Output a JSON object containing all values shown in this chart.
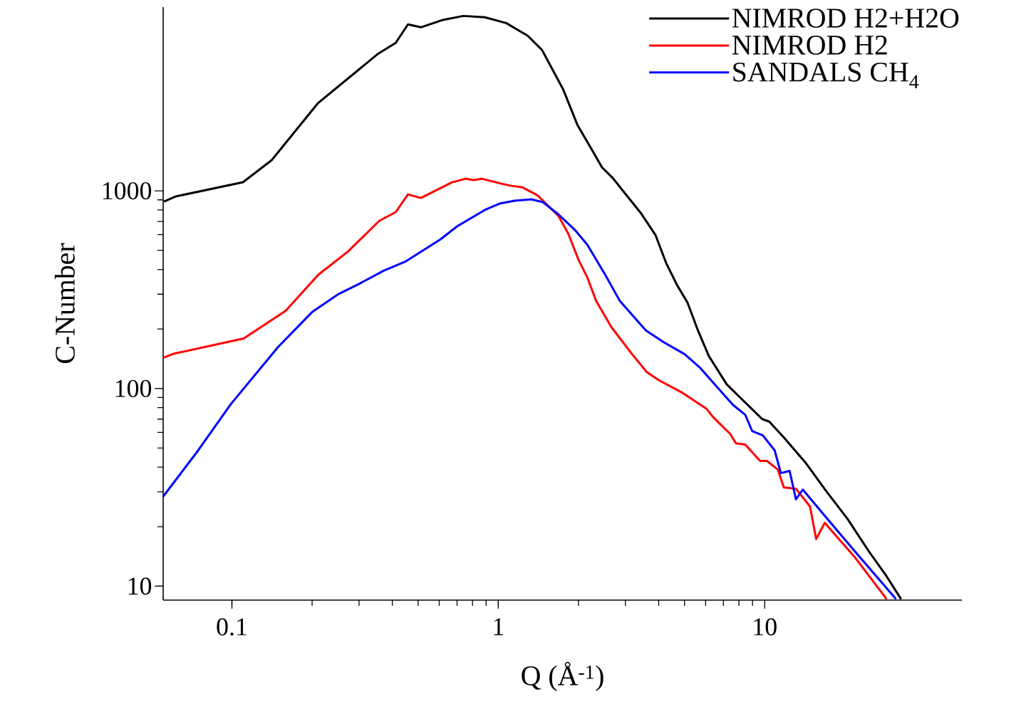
{
  "chart_data": {
    "type": "line",
    "xlabel": "Q (Å$^{-1}$)",
    "ylabel": "C-Number",
    "log": "xy",
    "xlim": [
      0.0552,
      55
    ],
    "ylim": [
      8.5,
      8500
    ],
    "xticks": [
      0.1,
      1,
      10
    ],
    "yticks": [
      10,
      100,
      1000
    ],
    "legend": "top right",
    "grid": false,
    "series": [
      {
        "name": "NIMROD H2+H2O",
        "color": "#000000",
        "x": [
          0.0556,
          0.0614,
          0.11,
          0.141,
          0.21,
          0.294,
          0.354,
          0.412,
          0.458,
          0.512,
          0.615,
          0.739,
          0.889,
          1.07,
          1.29,
          1.46,
          1.75,
          1.98,
          2.24,
          2.45,
          2.69,
          3.04,
          3.44,
          3.89,
          4.27,
          4.68,
          5.13,
          5.63,
          6.17,
          7.2,
          7.89,
          8.93,
          9.79,
          10.4,
          11.8,
          14.2,
          17.0,
          20.5,
          24.6,
          28.7,
          32.5
        ],
        "values": [
          883,
          936,
          1105,
          1429,
          2770,
          4020,
          4940,
          5600,
          6950,
          6720,
          7300,
          7670,
          7550,
          7060,
          6090,
          5150,
          3270,
          2160,
          1620,
          1315,
          1160,
          944,
          767,
          598,
          430,
          335,
          272,
          195,
          146,
          105,
          93,
          79,
          70,
          68,
          56.5,
          42.3,
          30.3,
          21.8,
          15.0,
          11.2,
          8.6
        ]
      },
      {
        "name": "NIMROD H2",
        "color": "#ff0000",
        "x": [
          0.0552,
          0.0606,
          0.1107,
          0.159,
          0.211,
          0.273,
          0.358,
          0.412,
          0.458,
          0.512,
          0.67,
          0.754,
          0.807,
          0.869,
          1.03,
          1.12,
          1.23,
          1.4,
          1.68,
          1.83,
          2.0,
          2.16,
          2.33,
          2.66,
          3.18,
          3.61,
          4.01,
          4.92,
          6.06,
          6.36,
          7.42,
          7.8,
          8.45,
          9.61,
          10.2,
          11.2,
          11.8,
          13.1,
          14.8,
          15.6,
          16.8,
          21.8,
          28.7
        ],
        "values": [
          143,
          150,
          179,
          247,
          376,
          494,
          706,
          780,
          959,
          920,
          1104,
          1151,
          1132,
          1151,
          1086,
          1059,
          1042,
          951,
          748,
          608,
          448,
          364,
          277,
          204,
          149,
          121,
          110,
          95,
          78.7,
          72.4,
          58.9,
          52.8,
          52.0,
          43.0,
          43.0,
          38.9,
          31.6,
          31.1,
          25.3,
          17.3,
          20.9,
          14.0,
          8.6
        ]
      },
      {
        "name": "SANDALS CH$_{4}$",
        "color": "#0000ff",
        "x": [
          0.0552,
          0.0747,
          0.0991,
          0.149,
          0.201,
          0.252,
          0.3,
          0.372,
          0.45,
          0.608,
          0.7,
          0.89,
          1.01,
          1.15,
          1.33,
          1.47,
          1.68,
          1.95,
          2.16,
          2.52,
          2.86,
          3.42,
          3.59,
          4.19,
          5.01,
          5.73,
          7.6,
          8.45,
          8.98,
          9.84,
          10.9,
          11.5,
          12.4,
          13.1,
          13.9,
          16.8,
          21.8,
          31.1
        ],
        "values": [
          28.4,
          48.6,
          83.4,
          162,
          245,
          301,
          338,
          395,
          440,
          569,
          661,
          800,
          861,
          891,
          906,
          876,
          761,
          629,
          533,
          376,
          277,
          211,
          196,
          171,
          149,
          127,
          82.6,
          73.6,
          60.8,
          57.9,
          48.6,
          37.3,
          38.3,
          27.5,
          30.8,
          22.7,
          15.0,
          8.6
        ]
      }
    ]
  }
}
